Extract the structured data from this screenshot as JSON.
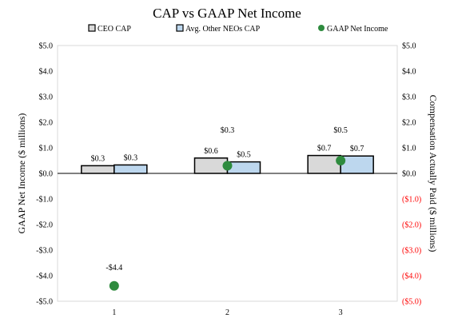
{
  "chart_data": {
    "type": "bar",
    "title": "CAP vs GAAP Net Income",
    "ylabel_left": "GAAP Net Income ($ millions)",
    "ylabel_right": "Compensation Actually Paid ($ millions)",
    "categories": [
      "1",
      "2",
      "3"
    ],
    "ylim": [
      -5.0,
      5.0
    ],
    "left_ticks": [
      "-$5.0",
      "-$4.0",
      "-$3.0",
      "-$2.0",
      "-$1.0",
      "$0.0",
      "$1.0",
      "$2.0",
      "$3.0",
      "$4.0",
      "$5.0"
    ],
    "right_ticks": [
      "($5.0)",
      "($4.0)",
      "($3.0)",
      "($2.0)",
      "($1.0)",
      "$0.0",
      "$1.0",
      "$2.0",
      "$3.0",
      "$4.0",
      "$5.0"
    ],
    "legend_position": "top",
    "series": [
      {
        "name": "CEO CAP",
        "kind": "bar",
        "axis": "right",
        "color": "#d9d9d9",
        "values": [
          0.3,
          0.6,
          0.7
        ],
        "labels": [
          "$0.3",
          "$0.6",
          "$0.7"
        ]
      },
      {
        "name": "Avg. Other NEOs CAP",
        "kind": "bar",
        "axis": "right",
        "color": "#bdd7ee",
        "values": [
          0.33,
          0.45,
          0.68
        ],
        "labels": [
          "$0.3",
          "$0.5",
          "$0.7"
        ]
      },
      {
        "name": "GAAP Net Income",
        "kind": "scatter",
        "axis": "left",
        "color": "#2e8b3e",
        "values": [
          -4.4,
          0.3,
          0.5
        ],
        "labels": [
          "-$4.4",
          "$0.3",
          "$0.5"
        ]
      }
    ],
    "colors": {
      "negative_tick": "#ff0000",
      "axis": "#000000",
      "bar_outline": "#000000"
    },
    "grid": false
  }
}
